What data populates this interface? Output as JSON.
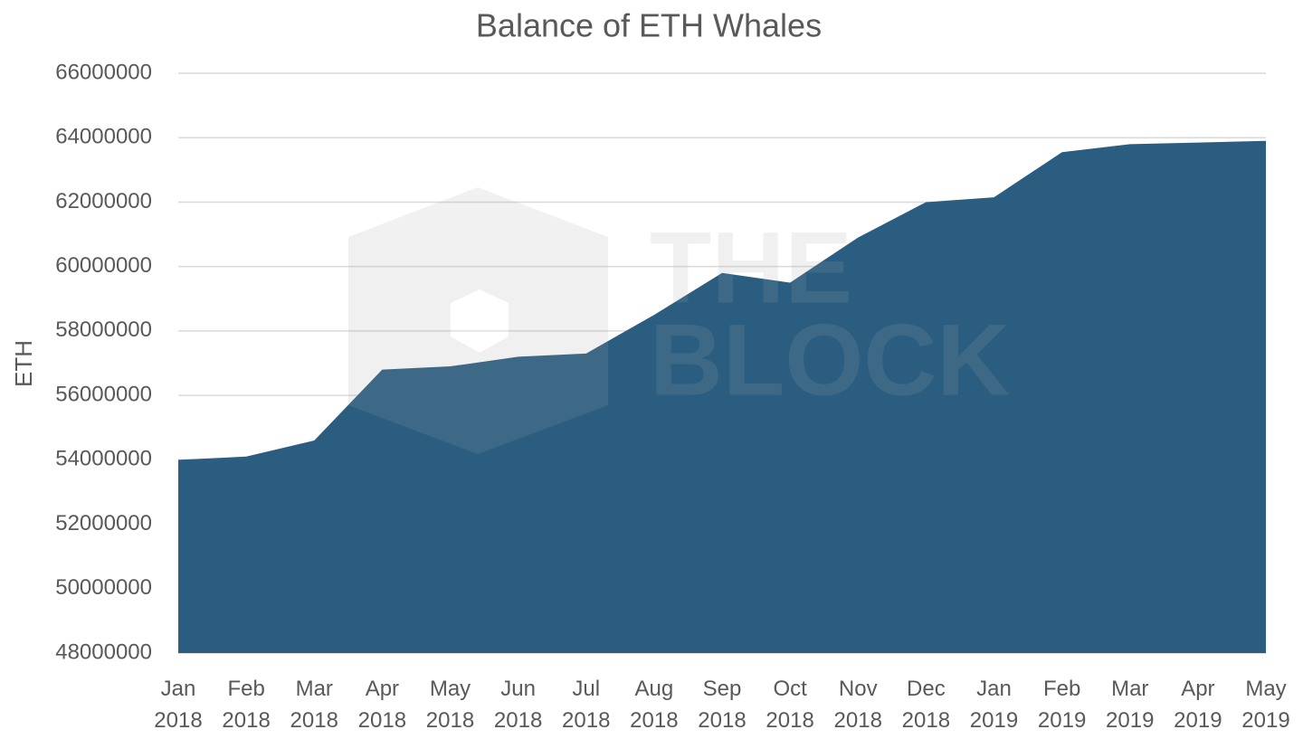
{
  "chart_data": {
    "type": "area",
    "title": "Balance of ETH Whales",
    "y_label": "ETH",
    "watermark": [
      "THE",
      "BLOCK"
    ],
    "categories": [
      "Jan 2018",
      "Feb 2018",
      "Mar 2018",
      "Apr 2018",
      "May 2018",
      "Jun 2018",
      "Jul 2018",
      "Aug 2018",
      "Sep 2018",
      "Oct 2018",
      "Nov 2018",
      "Dec 2018",
      "Jan 2019",
      "Feb 2019",
      "Mar 2019",
      "Apr 2019",
      "May 2019"
    ],
    "values": [
      54000000,
      54100000,
      54600000,
      56800000,
      56900000,
      57200000,
      57300000,
      58500000,
      59800000,
      59500000,
      60900000,
      62000000,
      62150000,
      63550000,
      63800000,
      63850000,
      63900000
    ],
    "color": "#2a5d80",
    "ylim": [
      48000000,
      66000000
    ],
    "yticks": [
      48000000,
      50000000,
      52000000,
      54000000,
      56000000,
      58000000,
      60000000,
      62000000,
      64000000,
      66000000
    ],
    "grid": true
  }
}
